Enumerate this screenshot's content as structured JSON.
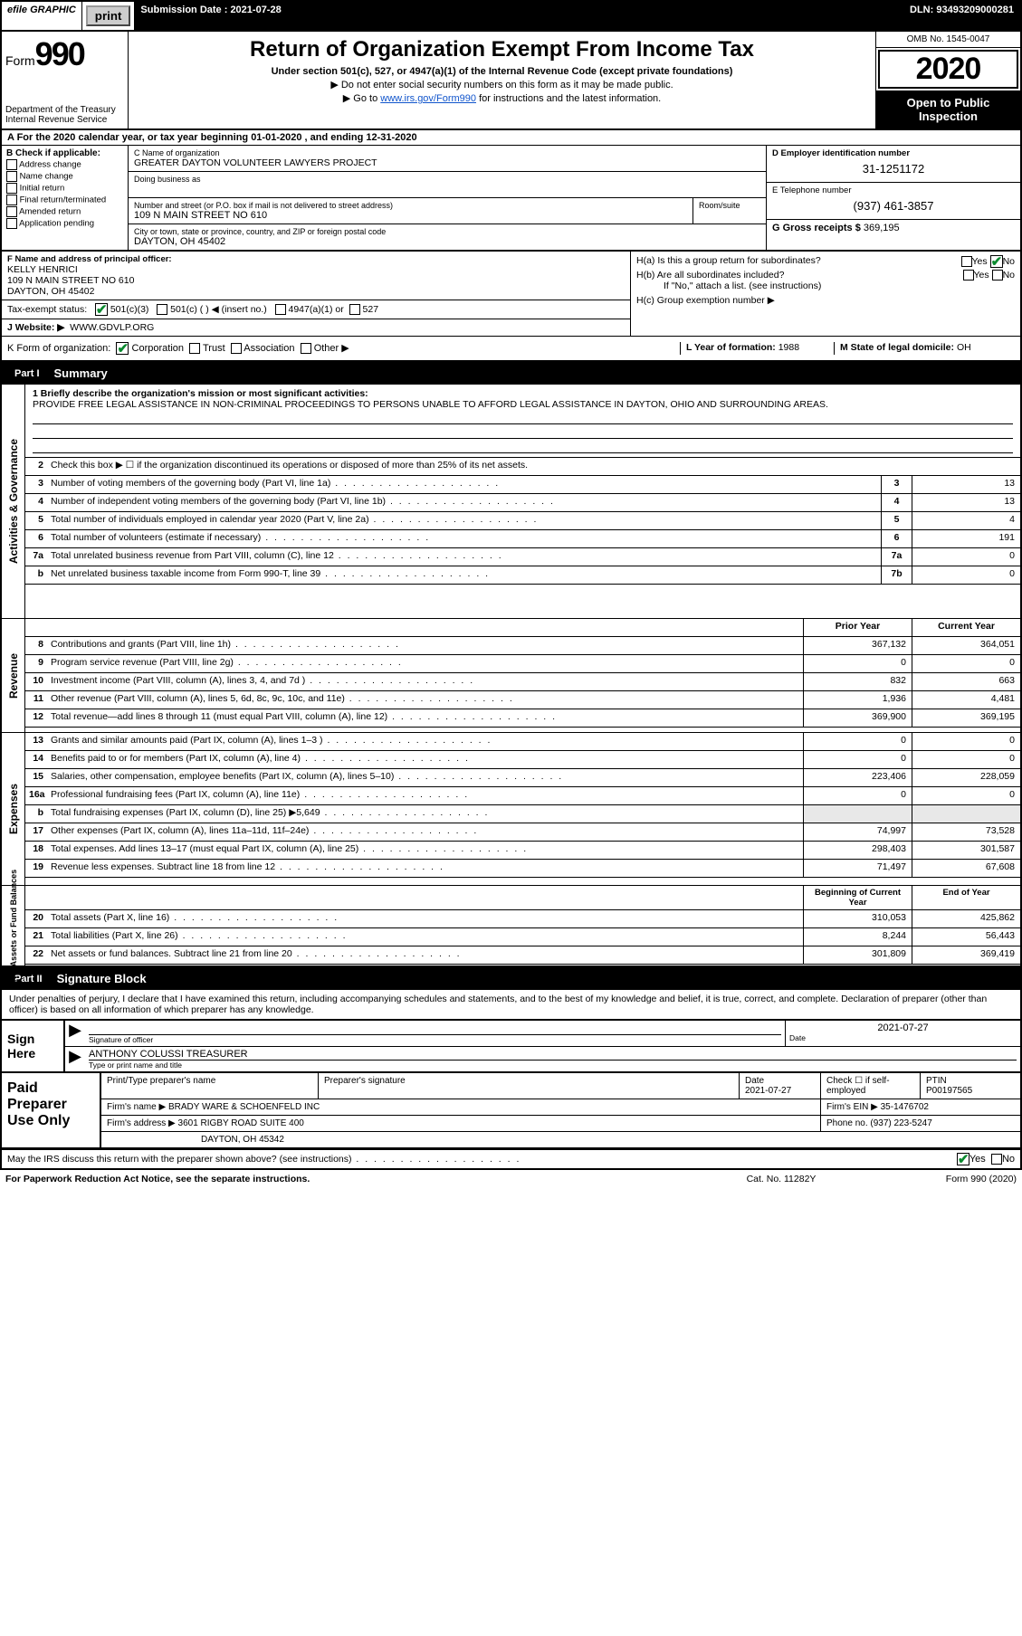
{
  "topbar": {
    "efile": "efile GRAPHIC",
    "print": "print",
    "subdate_label": "Submission Date : 2021-07-28",
    "dln": "DLN: 93493209000281"
  },
  "header": {
    "form_label": "Form",
    "form_num": "990",
    "dept": "Department of the Treasury\nInternal Revenue Service",
    "title": "Return of Organization Exempt From Income Tax",
    "sub1": "Under section 501(c), 527, or 4947(a)(1) of the Internal Revenue Code (except private foundations)",
    "sub2": "▶ Do not enter social security numbers on this form as it may be made public.",
    "sub3_pre": "▶ Go to ",
    "sub3_link": "www.irs.gov/Form990",
    "sub3_post": " for instructions and the latest information.",
    "omb": "OMB No. 1545-0047",
    "year": "2020",
    "inspect": "Open to Public Inspection"
  },
  "period": "A For the 2020 calendar year, or tax year beginning 01-01-2020     , and ending 12-31-2020",
  "blockB": {
    "label": "B Check if applicable:",
    "opts": [
      "Address change",
      "Name change",
      "Initial return",
      "Final return/terminated",
      "Amended return",
      "Application pending"
    ]
  },
  "blockC": {
    "name_lbl": "C Name of organization",
    "name": "GREATER DAYTON VOLUNTEER LAWYERS PROJECT",
    "dba_lbl": "Doing business as",
    "addr_lbl": "Number and street (or P.O. box if mail is not delivered to street address)",
    "room_lbl": "Room/suite",
    "addr": "109 N MAIN STREET NO 610",
    "city_lbl": "City or town, state or province, country, and ZIP or foreign postal code",
    "city": "DAYTON, OH  45402"
  },
  "blockD": {
    "lbl": "D Employer identification number",
    "val": "31-1251172"
  },
  "blockE": {
    "lbl": "E Telephone number",
    "val": "(937) 461-3857"
  },
  "blockG": {
    "lbl": "G Gross receipts $",
    "val": "369,195"
  },
  "blockF": {
    "lbl": "F  Name and address of principal officer:",
    "name": "KELLY HENRICI",
    "l1": "109 N MAIN STREET NO 610",
    "l2": "DAYTON, OH  45402"
  },
  "blockH": {
    "a": "H(a)  Is this a group return for subordinates?",
    "b": "H(b)  Are all subordinates included?",
    "bnote": "If \"No,\" attach a list. (see instructions)",
    "c": "H(c)  Group exemption number ▶",
    "yes": "Yes",
    "no": "No"
  },
  "taxexempt": {
    "lbl": "Tax-exempt status:",
    "o1": "501(c)(3)",
    "o2": "501(c) (  ) ◀ (insert no.)",
    "o3": "4947(a)(1) or",
    "o4": "527"
  },
  "blockJ": {
    "lbl": "J   Website: ▶",
    "val": "WWW.GDVLP.ORG"
  },
  "blockK": {
    "lbl": "K Form of organization:",
    "o1": "Corporation",
    "o2": "Trust",
    "o3": "Association",
    "o4": "Other ▶"
  },
  "blockL": {
    "lbl": "L Year of formation:",
    "val": "1988"
  },
  "blockM": {
    "lbl": "M State of legal domicile:",
    "val": "OH"
  },
  "part1": {
    "num": "Part I",
    "title": "Summary"
  },
  "sidebars": {
    "ag": "Activities & Governance",
    "rev": "Revenue",
    "exp": "Expenses",
    "na": "Net Assets or Fund Balances"
  },
  "mission": {
    "prompt": "1  Briefly describe the organization's mission or most significant activities:",
    "text": "PROVIDE FREE LEGAL ASSISTANCE IN NON-CRIMINAL PROCEEDINGS TO PERSONS UNABLE TO AFFORD LEGAL ASSISTANCE IN DAYTON, OHIO AND SURROUNDING AREAS."
  },
  "lines_ag": [
    {
      "n": "2",
      "t": "Check this box ▶ ☐  if the organization discontinued its operations or disposed of more than 25% of its net assets.",
      "box": "",
      "v": ""
    },
    {
      "n": "3",
      "t": "Number of voting members of the governing body (Part VI, line 1a)",
      "box": "3",
      "v": "13"
    },
    {
      "n": "4",
      "t": "Number of independent voting members of the governing body (Part VI, line 1b)",
      "box": "4",
      "v": "13"
    },
    {
      "n": "5",
      "t": "Total number of individuals employed in calendar year 2020 (Part V, line 2a)",
      "box": "5",
      "v": "4"
    },
    {
      "n": "6",
      "t": "Total number of volunteers (estimate if necessary)",
      "box": "6",
      "v": "191"
    },
    {
      "n": "7a",
      "t": "Total unrelated business revenue from Part VIII, column (C), line 12",
      "box": "7a",
      "v": "0"
    },
    {
      "n": "b",
      "t": "Net unrelated business taxable income from Form 990-T, line 39",
      "box": "7b",
      "v": "0"
    }
  ],
  "col_hdr": {
    "py": "Prior Year",
    "cy": "Current Year"
  },
  "lines_rev": [
    {
      "n": "8",
      "t": "Contributions and grants (Part VIII, line 1h)",
      "py": "367,132",
      "cy": "364,051"
    },
    {
      "n": "9",
      "t": "Program service revenue (Part VIII, line 2g)",
      "py": "0",
      "cy": "0"
    },
    {
      "n": "10",
      "t": "Investment income (Part VIII, column (A), lines 3, 4, and 7d )",
      "py": "832",
      "cy": "663"
    },
    {
      "n": "11",
      "t": "Other revenue (Part VIII, column (A), lines 5, 6d, 8c, 9c, 10c, and 11e)",
      "py": "1,936",
      "cy": "4,481"
    },
    {
      "n": "12",
      "t": "Total revenue—add lines 8 through 11 (must equal Part VIII, column (A), line 12)",
      "py": "369,900",
      "cy": "369,195"
    }
  ],
  "lines_exp": [
    {
      "n": "13",
      "t": "Grants and similar amounts paid (Part IX, column (A), lines 1–3 )",
      "py": "0",
      "cy": "0"
    },
    {
      "n": "14",
      "t": "Benefits paid to or for members (Part IX, column (A), line 4)",
      "py": "0",
      "cy": "0"
    },
    {
      "n": "15",
      "t": "Salaries, other compensation, employee benefits (Part IX, column (A), lines 5–10)",
      "py": "223,406",
      "cy": "228,059"
    },
    {
      "n": "16a",
      "t": "Professional fundraising fees (Part IX, column (A), line 11e)",
      "py": "0",
      "cy": "0"
    },
    {
      "n": "b",
      "t": "Total fundraising expenses (Part IX, column (D), line 25) ▶5,649",
      "py": "",
      "cy": "",
      "grey": true
    },
    {
      "n": "17",
      "t": "Other expenses (Part IX, column (A), lines 11a–11d, 11f–24e)",
      "py": "74,997",
      "cy": "73,528"
    },
    {
      "n": "18",
      "t": "Total expenses. Add lines 13–17 (must equal Part IX, column (A), line 25)",
      "py": "298,403",
      "cy": "301,587"
    },
    {
      "n": "19",
      "t": "Revenue less expenses. Subtract line 18 from line 12",
      "py": "71,497",
      "cy": "67,608"
    }
  ],
  "col_hdr2": {
    "py": "Beginning of Current Year",
    "cy": "End of Year"
  },
  "lines_na": [
    {
      "n": "20",
      "t": "Total assets (Part X, line 16)",
      "py": "310,053",
      "cy": "425,862"
    },
    {
      "n": "21",
      "t": "Total liabilities (Part X, line 26)",
      "py": "8,244",
      "cy": "56,443"
    },
    {
      "n": "22",
      "t": "Net assets or fund balances. Subtract line 21 from line 20",
      "py": "301,809",
      "cy": "369,419"
    }
  ],
  "part2": {
    "num": "Part II",
    "title": "Signature Block"
  },
  "sig": {
    "intro": "Under penalties of perjury, I declare that I have examined this return, including accompanying schedules and statements, and to the best of my knowledge and belief, it is true, correct, and complete. Declaration of preparer (other than officer) is based on all information of which preparer has any knowledge.",
    "here": "Sign Here",
    "sig_lbl": "Signature of officer",
    "date_lbl": "Date",
    "date": "2021-07-27",
    "name": "ANTHONY COLUSSI  TREASURER",
    "name_lbl": "Type or print name and title"
  },
  "pp": {
    "lbl": "Paid Preparer Use Only",
    "h1": "Print/Type preparer's name",
    "h2": "Preparer's signature",
    "h3": "Date",
    "h3v": "2021-07-27",
    "h4": "Check ☐ if self-employed",
    "h5": "PTIN",
    "h5v": "P00197565",
    "firm_lbl": "Firm's name   ▶",
    "firm": "BRADY WARE & SCHOENFELD INC",
    "ein_lbl": "Firm's EIN ▶",
    "ein": "35-1476702",
    "addr_lbl": "Firm's address ▶",
    "addr": "3601 RIGBY ROAD SUITE 400",
    "city": "DAYTON, OH  45342",
    "phone_lbl": "Phone no.",
    "phone": "(937) 223-5247"
  },
  "discuss": "May the IRS discuss this return with the preparer shown above? (see instructions)",
  "paperwork": {
    "l": "For Paperwork Reduction Act Notice, see the separate instructions.",
    "m": "Cat. No. 11282Y",
    "r": "Form 990 (2020)"
  }
}
